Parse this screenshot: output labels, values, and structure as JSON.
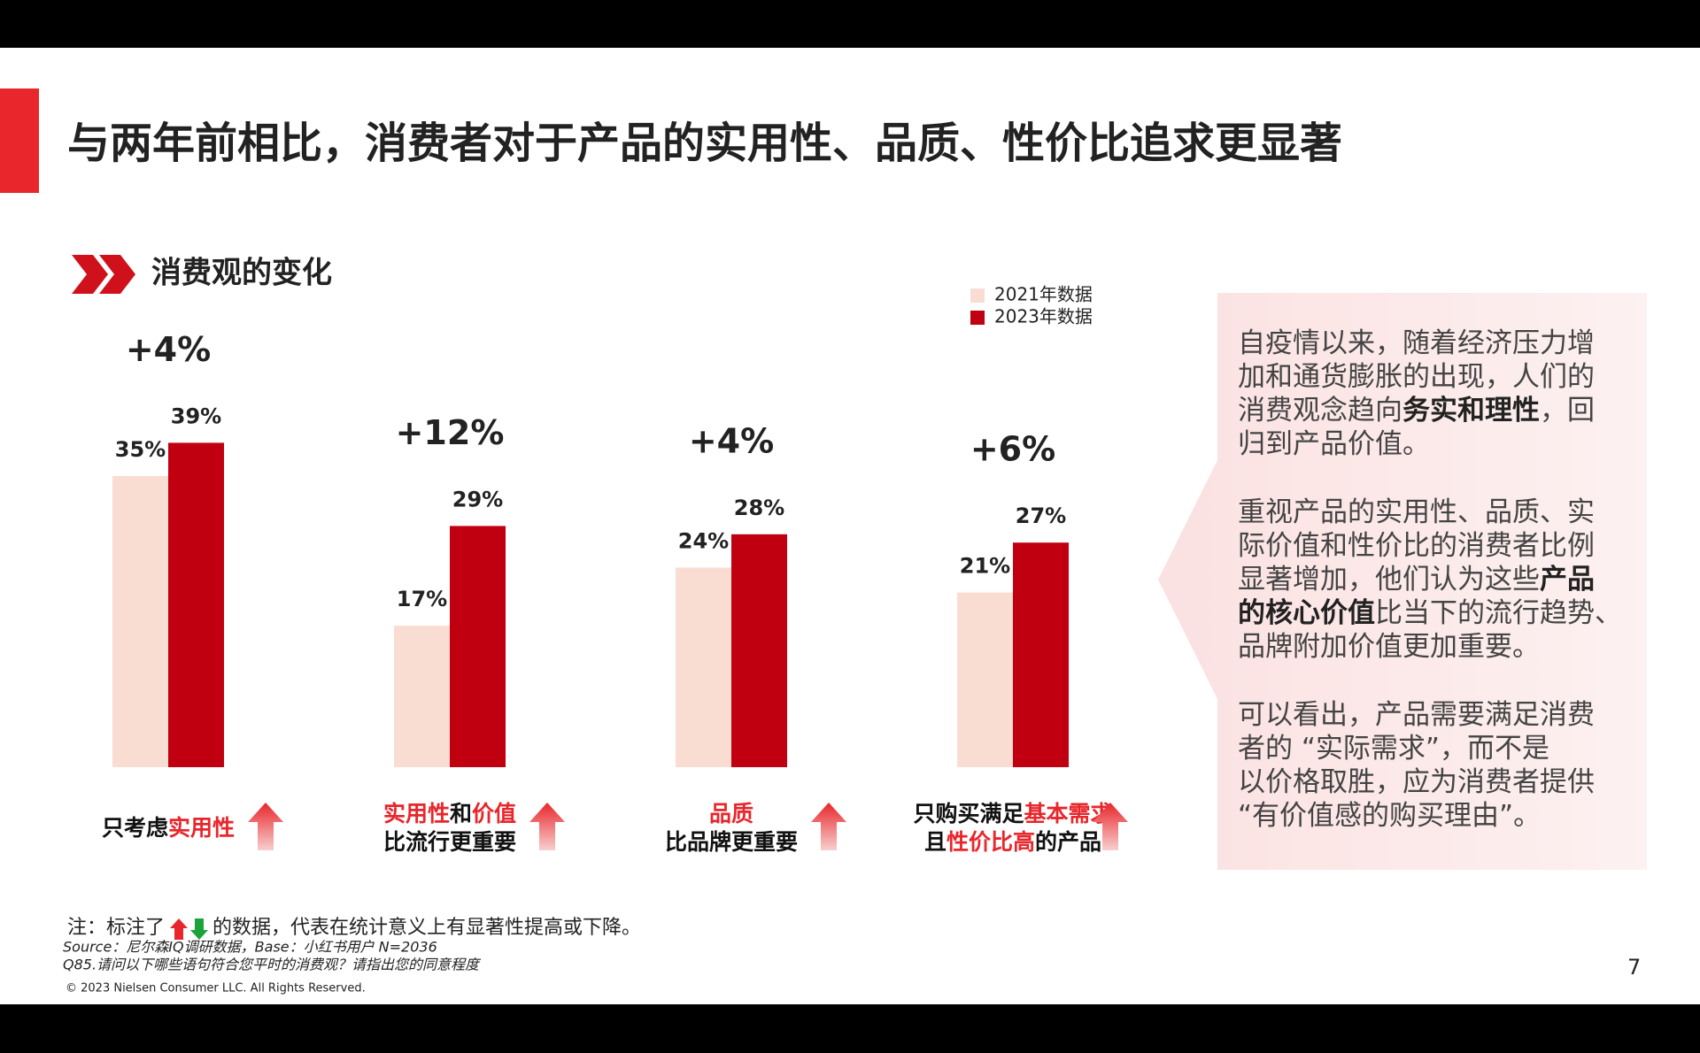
{
  "header": {
    "title": "与两年前相比，消费者对于产品的实用性、品质、性价比追求更显著"
  },
  "section_title": "消费观的变化",
  "chart_data": {
    "type": "bar",
    "categories": [
      [
        [
          {
            "text": "只考虑"
          },
          {
            "text": "实用性",
            "highlight": true
          }
        ]
      ],
      [
        [
          {
            "text": "实用性",
            "highlight": true
          },
          {
            "text": "和"
          },
          {
            "text": "价值",
            "highlight": true
          }
        ],
        [
          {
            "text": "比流行更重要"
          }
        ]
      ],
      [
        [
          {
            "text": "品质",
            "highlight": true
          }
        ],
        [
          {
            "text": "比品牌更重要"
          }
        ]
      ],
      [
        [
          {
            "text": "只购买满足"
          },
          {
            "text": "基本需求",
            "highlight": true
          }
        ],
        [
          {
            "text": "且"
          },
          {
            "text": "性价比高",
            "highlight": true
          },
          {
            "text": "的产品"
          }
        ]
      ]
    ],
    "series": [
      {
        "name": "2021年数据",
        "color": "#f9ddd3",
        "values": [
          35,
          17,
          24,
          21
        ],
        "value_labels": [
          "35%",
          "17%",
          "24%",
          "21%"
        ]
      },
      {
        "name": "2023年数据",
        "color": "#c00010",
        "values": [
          39,
          29,
          28,
          27
        ],
        "value_labels": [
          "39%",
          "29%",
          "28%",
          "27%"
        ]
      }
    ],
    "changes": {
      "values": [
        4,
        12,
        4,
        6
      ],
      "value_labels": [
        "+4%",
        "+12%",
        "+4%",
        "+6%"
      ],
      "color": "#e8262b"
    },
    "highlight_color": "#e8262b",
    "ylim": [
      0,
      40
    ]
  },
  "panel": {
    "paragraphs": [
      [
        [
          {
            "text": "自疫情以来，随着经济压力增"
          }
        ],
        [
          {
            "text": "加和通货膨胀的出现，人们的"
          }
        ],
        [
          {
            "text": "消费观念趋向"
          },
          {
            "text": "务实和理性",
            "bold": true
          },
          {
            "text": "，回"
          }
        ],
        [
          {
            "text": "归到产品价值。"
          }
        ]
      ],
      [
        [
          {
            "text": "重视产品的实用性、品质、实"
          }
        ],
        [
          {
            "text": "际价值和性价比的消费者比例"
          }
        ],
        [
          {
            "text": "显著增加，他们认为这些"
          },
          {
            "text": "产品",
            "bold": true
          }
        ],
        [
          {
            "text": "的核心价值",
            "bold": true
          },
          {
            "text": "比当下的流行趋势、"
          }
        ],
        [
          {
            "text": "品牌附加价值更加重要。"
          }
        ]
      ],
      [
        [
          {
            "text": "可以看出，产品需要满足消费"
          }
        ],
        [
          {
            "text": "者的 “实际需求”，而不是"
          }
        ],
        [
          {
            "text": "以价格取胜，应为消费者提供"
          }
        ],
        [
          {
            "text": "“有价值感的购买理由”。"
          }
        ]
      ]
    ]
  },
  "footnote": {
    "note": [
      "注：标注了",
      "的数据，代表在统计意义上有显著性提高或下降。"
    ],
    "source": "Source：尼尔森IQ调研数据，Base：小红书用户 N=2036",
    "question": "Q85.请问以下哪些语句符合您平时的消费观？请指出您的同意程度",
    "copyright": "© 2023 Nielsen Consumer LLC. All Rights Reserved."
  },
  "page_number": "7"
}
